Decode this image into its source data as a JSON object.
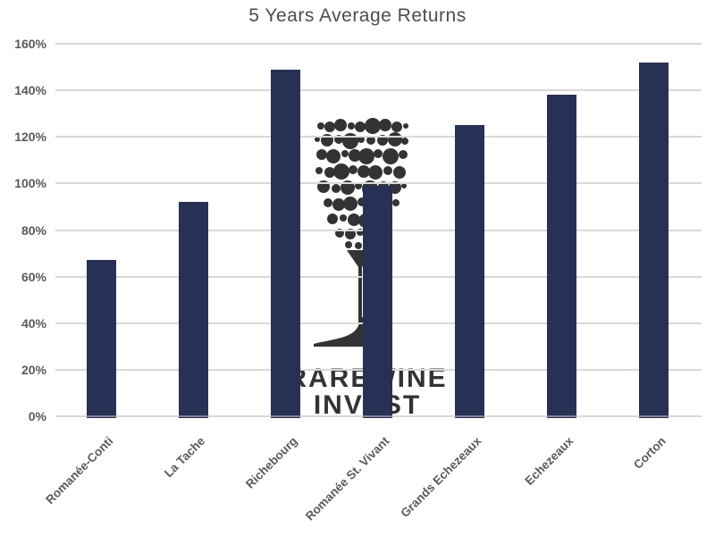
{
  "title": "5 Years Average Returns",
  "watermark": {
    "line1": "RAREWINE",
    "line2": "INVEST",
    "icon": "wine-glass-bubbles-icon"
  },
  "colors": {
    "background": "#ffffff",
    "bar": "#293055",
    "gridline": "#d9d9d9",
    "title_text": "#4d4d4d",
    "axis_text": "#595959",
    "watermark": "#333336"
  },
  "chart_data": {
    "type": "bar",
    "title": "5 Years Average Returns",
    "categories": [
      "Romanée-Conti",
      "La Tache",
      "Richebourg",
      "Romanée St. Vivant",
      "Grands Echezeaux",
      "Echezeaux",
      "Corton"
    ],
    "values": [
      67,
      92,
      149,
      99,
      125,
      138,
      152
    ],
    "unit": "%",
    "xlabel": "",
    "ylabel": "",
    "ylim": [
      0,
      160
    ],
    "ytick_step": 20,
    "ytick_labels": [
      "0%",
      "20%",
      "40%",
      "60%",
      "80%",
      "100%",
      "120%",
      "140%",
      "160%"
    ],
    "grid": true,
    "legend": "none",
    "bar_color": "#293055"
  }
}
